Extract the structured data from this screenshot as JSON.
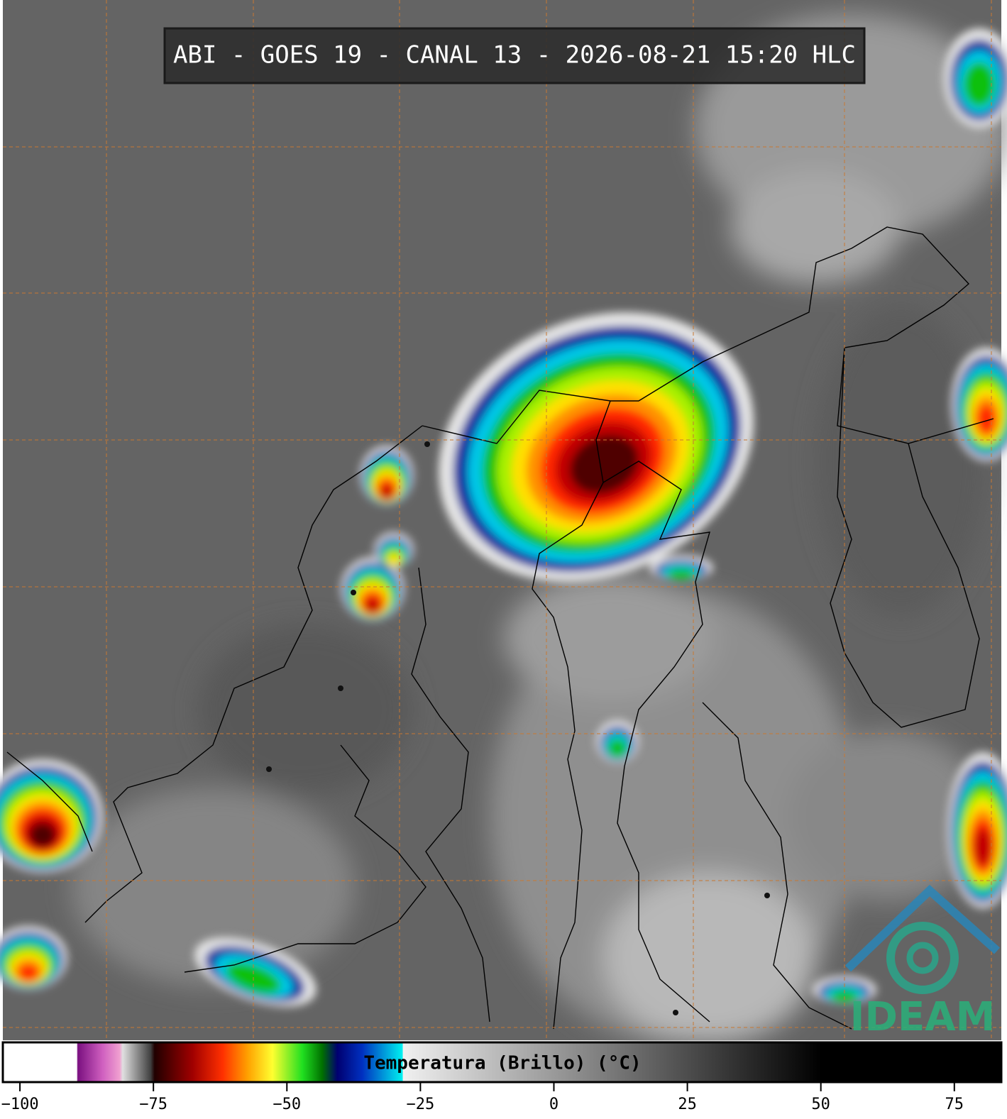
{
  "header": {
    "title": "ABI - GOES 19 - CANAL 13 - 2026-08-21 15:20 HLC"
  },
  "chart_data": {
    "type": "colorbar",
    "title": "Temperatura (Brillo) (°C)",
    "xlim": [
      -103.2,
      83.8
    ],
    "xticks": [
      {
        "value": -100,
        "label": "−100"
      },
      {
        "value": -75,
        "label": "−75"
      },
      {
        "value": -50,
        "label": "−50"
      },
      {
        "value": -25,
        "label": "−25"
      },
      0,
      25,
      50,
      75
    ]
  },
  "logo": {
    "text": "IDEAM"
  }
}
